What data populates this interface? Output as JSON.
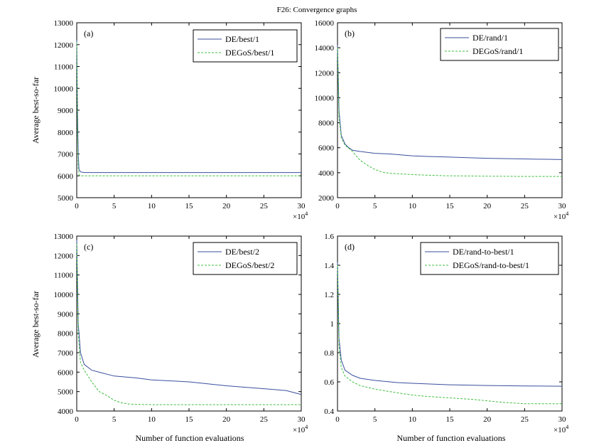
{
  "figure": {
    "title": "F26: Convergence graphs",
    "xlabel": "Number of function evaluations",
    "ylabel": "Average best-so-far",
    "x_exponent_base": "×10",
    "x_exponent_power": "4"
  },
  "colors": {
    "series1": "#3a4f9e",
    "series2": "#3fbf3f",
    "axis": "#000000"
  },
  "chart_data": [
    {
      "type": "line",
      "panel_label": "(a)",
      "xlim": [
        0,
        30
      ],
      "ylim": [
        5000,
        13000
      ],
      "xticks": [
        0,
        5,
        10,
        15,
        20,
        25,
        30
      ],
      "yticks": [
        5000,
        6000,
        7000,
        8000,
        9000,
        10000,
        11000,
        12000,
        13000
      ],
      "legend_position": "top-right",
      "series": [
        {
          "name": "DE/best/1",
          "style": "solid",
          "x": [
            0,
            0.1,
            0.2,
            0.3,
            0.5,
            1,
            30
          ],
          "y": [
            12200,
            9000,
            7000,
            6300,
            6180,
            6150,
            6150
          ]
        },
        {
          "name": "DEGoS/best/1",
          "style": "dashed",
          "x": [
            0,
            0.1,
            0.2,
            0.3,
            0.5,
            30
          ],
          "y": [
            12100,
            8000,
            6400,
            6050,
            6000,
            6000
          ]
        }
      ]
    },
    {
      "type": "line",
      "panel_label": "(b)",
      "xlim": [
        0,
        30
      ],
      "ylim": [
        2000,
        16000
      ],
      "xticks": [
        0,
        5,
        10,
        15,
        20,
        25,
        30
      ],
      "yticks": [
        2000,
        4000,
        6000,
        8000,
        10000,
        12000,
        14000,
        16000
      ],
      "legend_position": "top-right",
      "series": [
        {
          "name": "DE/rand/1",
          "style": "solid",
          "x": [
            0,
            0.2,
            0.5,
            1,
            1.5,
            2,
            3,
            5,
            7,
            10,
            12,
            15,
            20,
            25,
            30
          ],
          "y": [
            14200,
            9000,
            7000,
            6300,
            6000,
            5800,
            5700,
            5550,
            5500,
            5350,
            5300,
            5250,
            5150,
            5100,
            5050
          ]
        },
        {
          "name": "DEGoS/rand/1",
          "style": "dashed",
          "x": [
            0,
            0.2,
            0.5,
            1,
            2,
            3,
            4,
            5,
            6,
            7,
            10,
            12,
            15,
            20,
            25,
            30
          ],
          "y": [
            14000,
            8500,
            6800,
            6200,
            5700,
            5000,
            4600,
            4250,
            4050,
            3950,
            3850,
            3800,
            3750,
            3720,
            3700,
            3700
          ]
        }
      ]
    },
    {
      "type": "line",
      "panel_label": "(c)",
      "xlim": [
        0,
        30
      ],
      "ylim": [
        4000,
        13000
      ],
      "xticks": [
        0,
        5,
        10,
        15,
        20,
        25,
        30
      ],
      "yticks": [
        4000,
        5000,
        6000,
        7000,
        8000,
        9000,
        10000,
        11000,
        12000,
        13000
      ],
      "legend_position": "top-right",
      "series": [
        {
          "name": "DE/best/2",
          "style": "solid",
          "x": [
            0,
            0.2,
            0.5,
            1,
            2,
            3,
            5,
            8,
            10,
            15,
            20,
            25,
            28,
            29,
            30
          ],
          "y": [
            12800,
            8500,
            7000,
            6400,
            6100,
            6000,
            5800,
            5700,
            5600,
            5500,
            5300,
            5150,
            5050,
            4950,
            4850
          ]
        },
        {
          "name": "DEGoS/best/2",
          "style": "dashed",
          "x": [
            0,
            0.2,
            0.5,
            1,
            2,
            3,
            4,
            5,
            6,
            7,
            8,
            10,
            15,
            20,
            25,
            30
          ],
          "y": [
            12600,
            8000,
            6500,
            6100,
            5500,
            5000,
            4800,
            4550,
            4420,
            4360,
            4340,
            4330,
            4330,
            4330,
            4330,
            4330
          ]
        }
      ]
    },
    {
      "type": "line",
      "panel_label": "(d)",
      "xlim": [
        0,
        30
      ],
      "ylim": [
        0.4,
        1.6
      ],
      "xticks": [
        0,
        5,
        10,
        15,
        20,
        25,
        30
      ],
      "yticks": [
        0.4,
        0.6,
        0.8,
        1,
        1.2,
        1.4,
        1.6
      ],
      "legend_position": "top-right",
      "series": [
        {
          "name": "DE/rand-to-best/1",
          "style": "solid",
          "x": [
            0,
            0.2,
            0.5,
            1,
            2,
            3,
            5,
            8,
            10,
            15,
            20,
            25,
            30
          ],
          "y": [
            1.42,
            0.9,
            0.75,
            0.68,
            0.645,
            0.625,
            0.61,
            0.595,
            0.59,
            0.58,
            0.575,
            0.572,
            0.57
          ]
        },
        {
          "name": "DEGoS/rand-to-best/1",
          "style": "dashed",
          "x": [
            0,
            0.2,
            0.5,
            1,
            2,
            3,
            5,
            8,
            10,
            12,
            15,
            18,
            20,
            22,
            25,
            28,
            30
          ],
          "y": [
            1.4,
            0.85,
            0.7,
            0.64,
            0.6,
            0.575,
            0.55,
            0.525,
            0.51,
            0.5,
            0.49,
            0.48,
            0.47,
            0.46,
            0.45,
            0.45,
            0.45
          ]
        }
      ]
    }
  ]
}
